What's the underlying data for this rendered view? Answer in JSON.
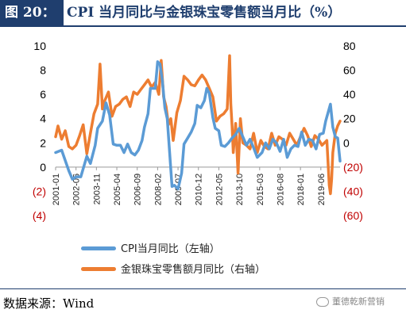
{
  "header": {
    "label": "图 20：",
    "title": "CPI 当月同比与金银珠宝零售额当月比（%）"
  },
  "footer": {
    "source": "数据来源：Wind",
    "watermark": "董德乾新营销"
  },
  "colors": {
    "title_bg": "#1f3e6e",
    "series_cpi": "#5b9bd5",
    "series_jewelry": "#ed7d31",
    "left_axis": "#000000",
    "right_axis_positive": "#000000",
    "right_axis_negative": "#c00000"
  },
  "chart_data": {
    "type": "line",
    "x_ticks": [
      "2001-01",
      "2002-06",
      "2003-11",
      "2005-04",
      "2006-09",
      "2008-02",
      "2009-07",
      "2010-12",
      "2012-05",
      "2013-10",
      "2015-03",
      "2016-08",
      "2018-01",
      "2019-06"
    ],
    "y_left": {
      "ticks": [
        "10",
        "8",
        "6",
        "4",
        "2",
        "0",
        "(2)",
        "(4)"
      ],
      "ylim": [
        -4,
        10
      ]
    },
    "y_right": {
      "ticks": [
        "80",
        "60",
        "40",
        "20",
        "0",
        "(20)",
        "(40)",
        "(60)"
      ],
      "ylim": [
        -60,
        80
      ]
    },
    "grid": false,
    "legend_position": "bottom",
    "series": [
      {
        "name": "CPI当月同比（左轴）",
        "axis": "left",
        "x": [
          "2001-01",
          "2001-06",
          "2001-12",
          "2002-03",
          "2002-06",
          "2002-10",
          "2003-03",
          "2003-06",
          "2003-10",
          "2003-12",
          "2004-04",
          "2004-07",
          "2004-10",
          "2005-01",
          "2005-04",
          "2005-07",
          "2005-10",
          "2006-01",
          "2006-04",
          "2006-07",
          "2006-10",
          "2007-01",
          "2007-03",
          "2007-06",
          "2007-08",
          "2007-10",
          "2007-12",
          "2008-02",
          "2008-04",
          "2008-06",
          "2008-08",
          "2008-10",
          "2008-12",
          "2009-02",
          "2009-04",
          "2009-07",
          "2009-10",
          "2009-12",
          "2010-03",
          "2010-06",
          "2010-09",
          "2010-11",
          "2011-02",
          "2011-05",
          "2011-07",
          "2011-09",
          "2011-12",
          "2012-02",
          "2012-05",
          "2012-07",
          "2012-10",
          "2013-01",
          "2013-04",
          "2013-07",
          "2013-10",
          "2014-01",
          "2014-04",
          "2014-07",
          "2014-10",
          "2015-01",
          "2015-05",
          "2015-08",
          "2015-11",
          "2016-02",
          "2016-05",
          "2016-08",
          "2016-11",
          "2017-02",
          "2017-05",
          "2017-08",
          "2017-11",
          "2018-02",
          "2018-05",
          "2018-08",
          "2018-11",
          "2019-02",
          "2019-05",
          "2019-08",
          "2019-10",
          "2019-12",
          "2020-02",
          "2020-04",
          "2020-06",
          "2020-08",
          "2020-10"
        ],
        "values": [
          1.2,
          1.4,
          -0.3,
          -1.0,
          -0.8,
          -0.8,
          0.9,
          0.3,
          1.8,
          3.2,
          3.8,
          5.3,
          4.3,
          1.9,
          1.8,
          1.8,
          1.2,
          1.9,
          1.2,
          1.0,
          1.4,
          2.2,
          3.3,
          4.4,
          6.5,
          6.5,
          6.5,
          8.7,
          8.5,
          7.1,
          4.9,
          4.0,
          1.2,
          -1.6,
          -1.5,
          -1.8,
          -0.5,
          1.9,
          2.4,
          2.9,
          3.6,
          5.1,
          4.9,
          5.5,
          6.5,
          6.1,
          4.1,
          3.2,
          3.0,
          1.8,
          1.7,
          2.0,
          2.4,
          2.7,
          3.2,
          2.5,
          1.8,
          2.3,
          1.6,
          0.8,
          1.2,
          2.0,
          1.5,
          2.3,
          2.0,
          1.3,
          2.3,
          0.8,
          1.5,
          1.8,
          1.7,
          2.9,
          1.8,
          2.3,
          2.2,
          1.5,
          2.7,
          2.8,
          3.8,
          4.5,
          5.2,
          3.3,
          2.5,
          2.4,
          0.5
        ]
      },
      {
        "name": "金银珠宝零售额月同比（右轴）",
        "axis": "right",
        "x": [
          "2001-01",
          "2001-03",
          "2001-06",
          "2001-09",
          "2001-12",
          "2002-03",
          "2002-06",
          "2002-09",
          "2002-12",
          "2003-03",
          "2003-06",
          "2003-09",
          "2003-12",
          "2004-02",
          "2004-04",
          "2004-06",
          "2004-09",
          "2004-12",
          "2005-03",
          "2005-06",
          "2005-09",
          "2005-12",
          "2006-03",
          "2006-06",
          "2006-09",
          "2006-12",
          "2007-03",
          "2007-06",
          "2007-09",
          "2007-12",
          "2008-03",
          "2008-05",
          "2008-07",
          "2008-09",
          "2008-11",
          "2009-01",
          "2009-03",
          "2009-06",
          "2009-09",
          "2009-12",
          "2010-03",
          "2010-06",
          "2010-09",
          "2010-12",
          "2011-03",
          "2011-06",
          "2011-09",
          "2011-12",
          "2012-03",
          "2012-06",
          "2012-09",
          "2012-12",
          "2013-02",
          "2013-03",
          "2013-04",
          "2013-05",
          "2013-07",
          "2013-09",
          "2013-11",
          "2014-01",
          "2014-04",
          "2014-07",
          "2014-10",
          "2015-01",
          "2015-04",
          "2015-07",
          "2015-10",
          "2016-01",
          "2016-04",
          "2016-07",
          "2016-10",
          "2017-01",
          "2017-04",
          "2017-07",
          "2017-10",
          "2018-01",
          "2018-04",
          "2018-07",
          "2018-10",
          "2019-01",
          "2019-04",
          "2019-07",
          "2019-09",
          "2019-11",
          "2020-01",
          "2020-02",
          "2020-03",
          "2020-04",
          "2020-06",
          "2020-08",
          "2020-10"
        ],
        "values": [
          5,
          14,
          3,
          10,
          -3,
          -5,
          -2,
          6,
          15,
          -9,
          8,
          24,
          32,
          65,
          28,
          35,
          42,
          22,
          30,
          32,
          36,
          38,
          30,
          42,
          40,
          44,
          48,
          52,
          46,
          50,
          40,
          68,
          38,
          30,
          15,
          20,
          2,
          25,
          35,
          55,
          52,
          48,
          47,
          52,
          56,
          52,
          45,
          38,
          18,
          22,
          24,
          28,
          72,
          32,
          14,
          -8,
          16,
          -25,
          20,
          0,
          -2,
          -5,
          8,
          -8,
          2,
          -3,
          -5,
          8,
          -2,
          5,
          3,
          -2,
          8,
          3,
          -2,
          5,
          12,
          6,
          -3,
          6,
          3,
          -2,
          0,
          2,
          -35,
          -42,
          -30,
          -8,
          8,
          14,
          18
        ]
      }
    ]
  }
}
